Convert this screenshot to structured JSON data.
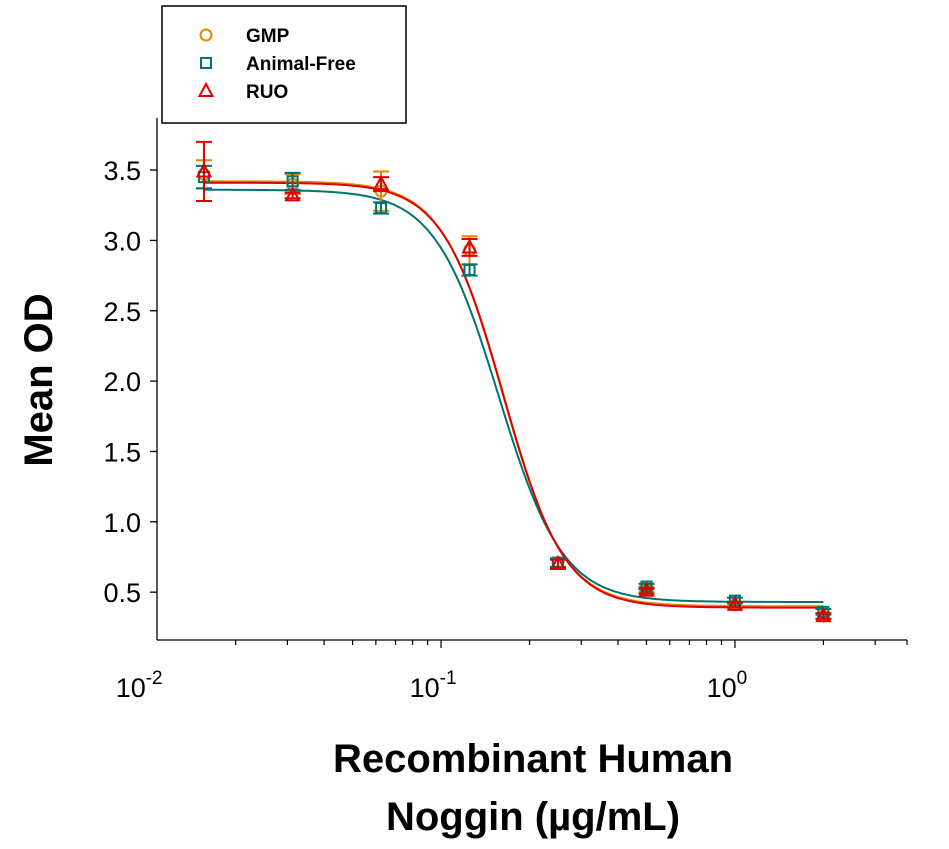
{
  "chart_data": {
    "type": "scatter",
    "xlabel_lines": [
      "Recombinant Human",
      "Noggin (µg/mL)"
    ],
    "ylabel": "Mean OD",
    "x_scale": "log",
    "xlim": [
      0.0108,
      3.85
    ],
    "ylim": [
      0.16,
      3.87
    ],
    "x_ticks": [
      {
        "base": "10",
        "exp": "-2",
        "value": 0.01
      },
      {
        "base": "10",
        "exp": "-1",
        "value": 0.1
      },
      {
        "base": "10",
        "exp": "0",
        "value": 1
      }
    ],
    "y_ticks": [
      "0.5",
      "1.0",
      "1.5",
      "2.0",
      "2.5",
      "3.0",
      "3.5"
    ],
    "grid": false,
    "legend_position": "top-left",
    "x": [
      0.0156,
      0.03125,
      0.0625,
      0.125,
      0.25,
      0.5,
      1,
      2
    ],
    "series": [
      {
        "name": "GMP",
        "marker": "circle",
        "color": "#E08A00",
        "values": [
          3.47,
          3.4,
          3.35,
          2.93,
          0.71,
          0.52,
          0.41,
          0.33
        ],
        "errors": [
          0.1,
          0.07,
          0.14,
          0.1,
          0.03,
          0.02,
          0.02,
          0.02
        ],
        "fit": {
          "top": 3.42,
          "bottom": 0.4,
          "ec50": 0.162,
          "hill": 4.2
        }
      },
      {
        "name": "Animal-Free",
        "marker": "square",
        "color": "#007373",
        "values": [
          3.45,
          3.42,
          3.23,
          2.79,
          0.71,
          0.54,
          0.44,
          0.36
        ],
        "errors": [
          0.08,
          0.06,
          0.04,
          0.04,
          0.03,
          0.02,
          0.02,
          0.02
        ],
        "fit": {
          "top": 3.36,
          "bottom": 0.43,
          "ec50": 0.157,
          "hill": 4.0
        }
      },
      {
        "name": "RUO",
        "marker": "triangle",
        "color": "#E00000",
        "values": [
          3.49,
          3.32,
          3.4,
          2.95,
          0.7,
          0.51,
          0.41,
          0.33
        ],
        "errors": [
          0.21,
          0.02,
          0.05,
          0.06,
          0.03,
          0.02,
          0.02,
          0.02
        ],
        "fit": {
          "top": 3.41,
          "bottom": 0.39,
          "ec50": 0.163,
          "hill": 4.2
        }
      }
    ]
  }
}
